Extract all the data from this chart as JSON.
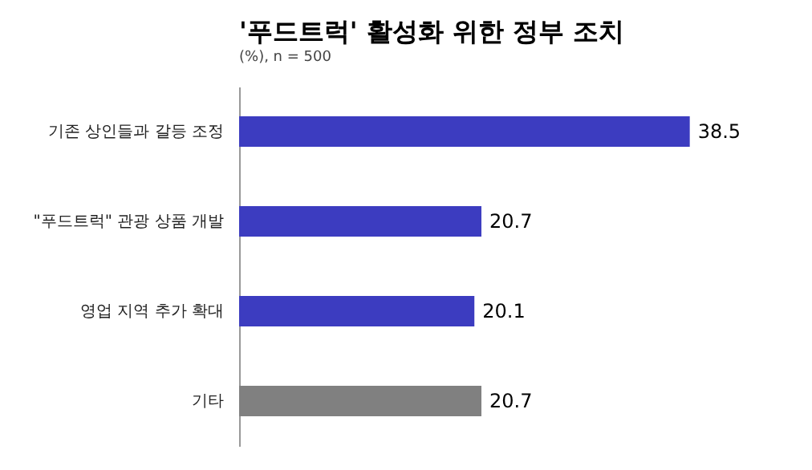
{
  "chart_data": {
    "type": "bar",
    "orientation": "horizontal",
    "title": "'푸드트럭' 활성화 위한 정부 조치",
    "subtitle": "(%), n = 500",
    "categories": [
      "기존 상인들과 갈등 조정",
      "\"푸드트럭\" 관광 상품 개발",
      "영업 지역 추가 확대",
      "기타"
    ],
    "values": [
      38.5,
      20.7,
      20.1,
      20.7
    ],
    "colors": [
      "#3c3cc0",
      "#3c3cc0",
      "#3c3cc0",
      "#808080"
    ],
    "data_labels": true,
    "grid": false
  }
}
